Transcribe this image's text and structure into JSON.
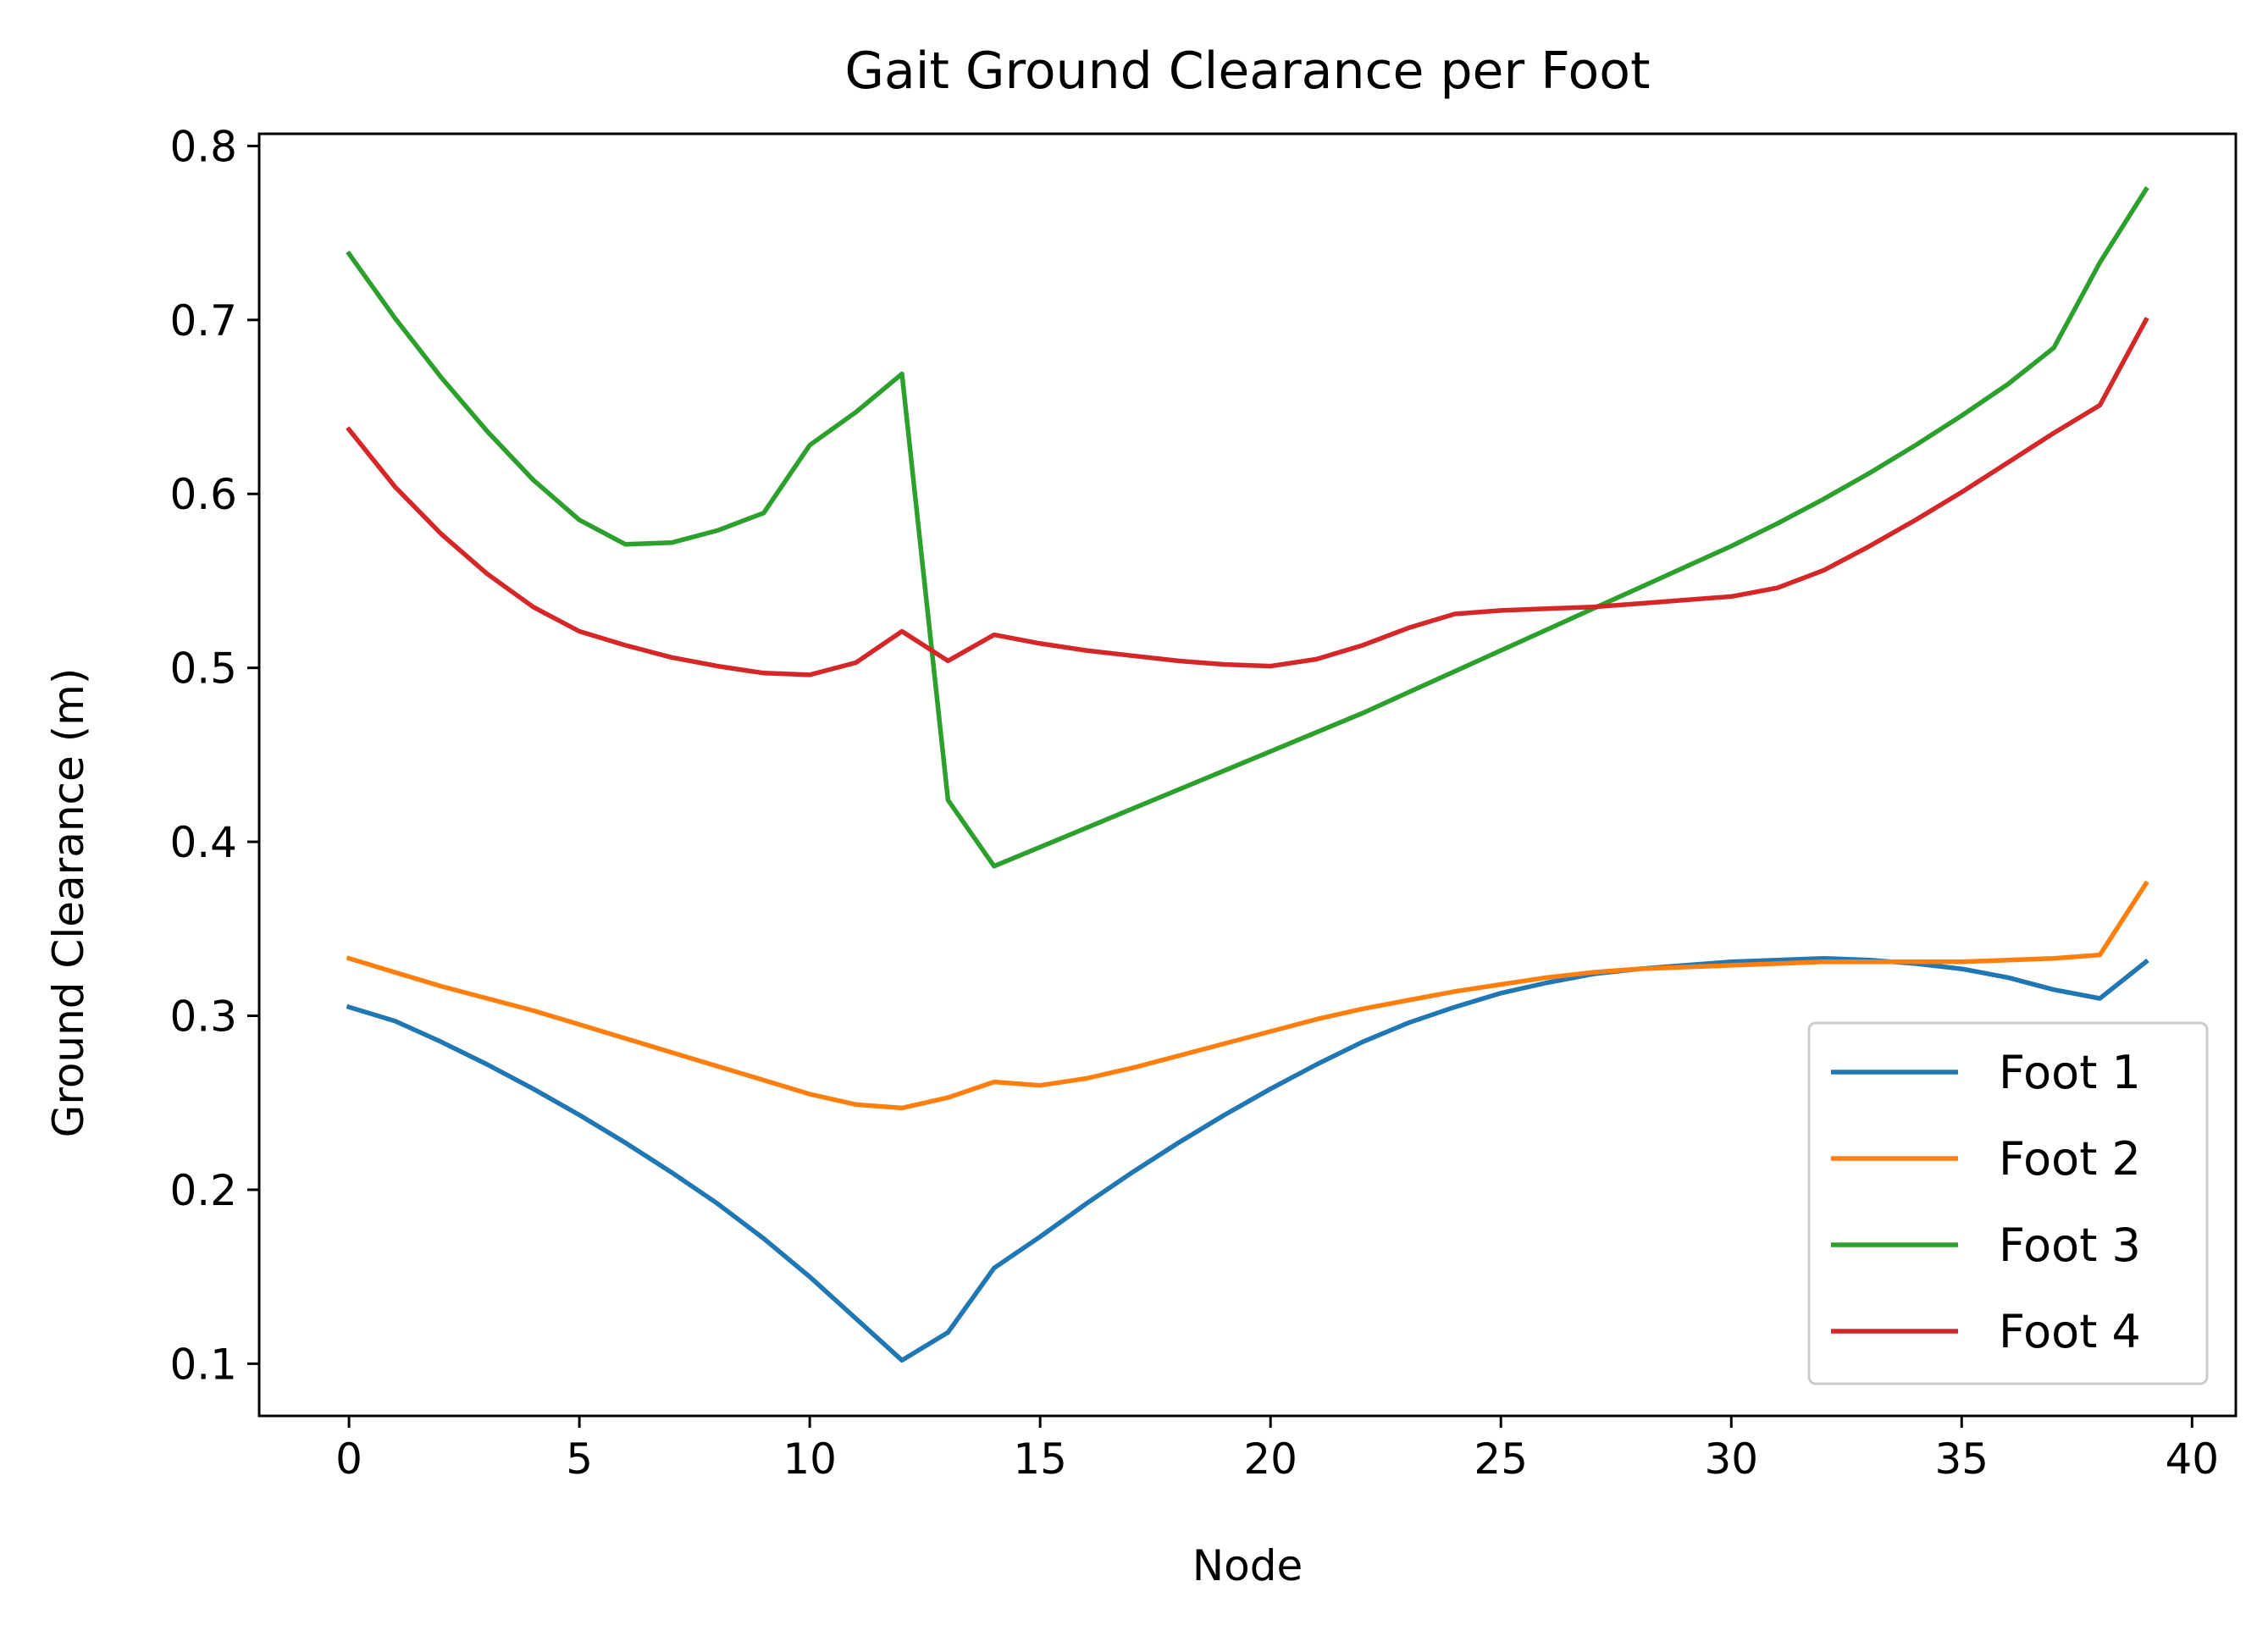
{
  "chart_data": {
    "type": "line",
    "title": "Gait Ground Clearance per Foot",
    "xlabel": "Node",
    "ylabel": "Ground Clearance (m)",
    "xlim": [
      -1.95,
      40.95
    ],
    "ylim": [
      0.07,
      0.807
    ],
    "xticks": [
      0,
      5,
      10,
      15,
      20,
      25,
      30,
      35,
      40
    ],
    "yticks": [
      0.1,
      0.2,
      0.3,
      0.4,
      0.5,
      0.6,
      0.7,
      0.8
    ],
    "xtick_labels": [
      "0",
      "5",
      "10",
      "15",
      "20",
      "25",
      "30",
      "35",
      "40"
    ],
    "ytick_labels": [
      "0.1",
      "0.2",
      "0.3",
      "0.4",
      "0.5",
      "0.6",
      "0.7",
      "0.8"
    ],
    "legend_position": "lower-right",
    "grid": false,
    "x": [
      0,
      1,
      2,
      3,
      4,
      5,
      6,
      7,
      8,
      9,
      10,
      11,
      12,
      13,
      14,
      15,
      16,
      17,
      18,
      19,
      20,
      21,
      22,
      23,
      24,
      25,
      26,
      27,
      28,
      29,
      30,
      31,
      32,
      33,
      34,
      35,
      36,
      37,
      38,
      39
    ],
    "series": [
      {
        "name": "Foot 1",
        "color": "#1f77b4",
        "values": [
          0.305,
          0.297,
          0.285,
          0.272,
          0.258,
          0.243,
          0.227,
          0.21,
          0.192,
          0.172,
          0.15,
          0.126,
          0.102,
          0.118,
          0.155,
          0.173,
          0.192,
          0.21,
          0.227,
          0.243,
          0.258,
          0.272,
          0.285,
          0.296,
          0.305,
          0.313,
          0.319,
          0.324,
          0.327,
          0.329,
          0.331,
          0.332,
          0.333,
          0.332,
          0.33,
          0.327,
          0.322,
          0.315,
          0.31,
          0.331
        ]
      },
      {
        "name": "Foot 2",
        "color": "#ff7f0e",
        "values": [
          0.333,
          0.325,
          0.317,
          0.31,
          0.303,
          0.295,
          0.287,
          0.279,
          0.271,
          0.263,
          0.255,
          0.249,
          0.247,
          0.253,
          0.262,
          0.26,
          0.264,
          0.27,
          0.277,
          0.284,
          0.291,
          0.298,
          0.304,
          0.309,
          0.314,
          0.318,
          0.322,
          0.325,
          0.327,
          0.328,
          0.329,
          0.33,
          0.331,
          0.331,
          0.331,
          0.331,
          0.332,
          0.333,
          0.335,
          0.376
        ]
      },
      {
        "name": "Foot 3",
        "color": "#2ca02c",
        "values": [
          0.738,
          0.701,
          0.667,
          0.636,
          0.608,
          0.585,
          0.571,
          0.572,
          0.579,
          0.589,
          0.628,
          0.647,
          0.669,
          0.424,
          0.386,
          0.397,
          0.408,
          0.419,
          0.43,
          0.441,
          0.452,
          0.463,
          0.474,
          0.486,
          0.498,
          0.51,
          0.522,
          0.534,
          0.546,
          0.558,
          0.57,
          0.583,
          0.597,
          0.612,
          0.628,
          0.645,
          0.663,
          0.684,
          0.733,
          0.775
        ]
      },
      {
        "name": "Foot 4",
        "color": "#d62728",
        "values": [
          0.637,
          0.604,
          0.577,
          0.554,
          0.535,
          0.521,
          0.513,
          0.506,
          0.501,
          0.497,
          0.496,
          0.503,
          0.521,
          0.504,
          0.519,
          0.514,
          0.51,
          0.507,
          0.504,
          0.502,
          0.501,
          0.505,
          0.513,
          0.523,
          0.531,
          0.533,
          0.534,
          0.535,
          0.537,
          0.539,
          0.541,
          0.546,
          0.556,
          0.57,
          0.585,
          0.601,
          0.618,
          0.635,
          0.651,
          0.7
        ]
      }
    ]
  }
}
